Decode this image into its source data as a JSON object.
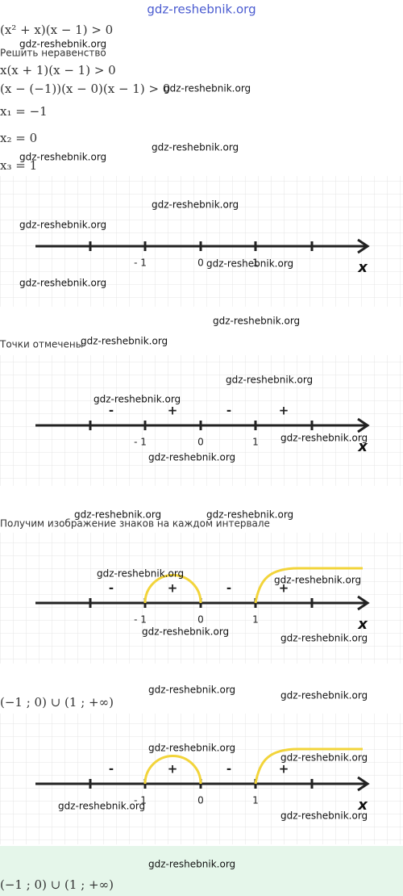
{
  "header": {
    "site": "gdz-reshebnik.org"
  },
  "solution": {
    "lines": [
      "(x² + x)(x − 1) > 0",
      "Решить неравенство",
      "x(x + 1)(x − 1) > 0",
      "(x − (−1))(x − 0)(x − 1) > 0",
      "x₁ = −1",
      "x₂ = 0",
      "x₃ = 1"
    ]
  },
  "figures": [
    {
      "tick_labels": [
        "- 1",
        "0",
        "1"
      ],
      "axis_label": "x"
    },
    {
      "tick_labels": [
        "- 1",
        "0",
        "1"
      ],
      "axis_label": "x",
      "signs": [
        "-",
        "+",
        "-",
        "+"
      ]
    },
    {
      "tick_labels": [
        "- 1",
        "0",
        "1"
      ],
      "axis_label": "x",
      "signs": [
        "-",
        "+",
        "-",
        "+"
      ]
    },
    {
      "tick_labels": [
        "- 1",
        "0",
        "1"
      ],
      "axis_label": "x",
      "signs": [
        "-",
        "+",
        "-",
        "+"
      ]
    }
  ],
  "captions": [
    "Точки отмечены",
    "Получим изображение знаков на каждом интервале"
  ],
  "answers": [
    "(−1 ; 0) ∪ (1 ; +∞)",
    "(−1 ; 0) ∪ (1 ; +∞)"
  ],
  "watermarks": [
    "gdz-reshebnik.org",
    "gdz-reshebnik.org",
    "gdz-reshebnik.org",
    "gdz-reshebnik.org",
    "gdz-reshebnik.org",
    "gdz-reshebnik.org",
    "gdz-reshebnik.org",
    "gdz-reshebnik.org",
    "gdz-reshebnik.org",
    "gdz-reshebnik.org",
    "gdz-reshebnik.org",
    "gdz-reshebnik.org",
    "gdz-reshebnik.org",
    "gdz-reshebnik.org",
    "gdz-reshebnik.org",
    "gdz-reshebnik.org",
    "gdz-reshebnik.org",
    "gdz-reshebnik.org",
    "gdz-reshebnik.org",
    "gdz-reshebnik.org",
    "gdz-reshebnik.org",
    "gdz-reshebnik.org",
    "gdz-reshebnik.org",
    "gdz-reshebnik.org",
    "gdz-reshebnik.org",
    "gdz-reshebnik.org",
    "gdz-reshebnik.org"
  ]
}
